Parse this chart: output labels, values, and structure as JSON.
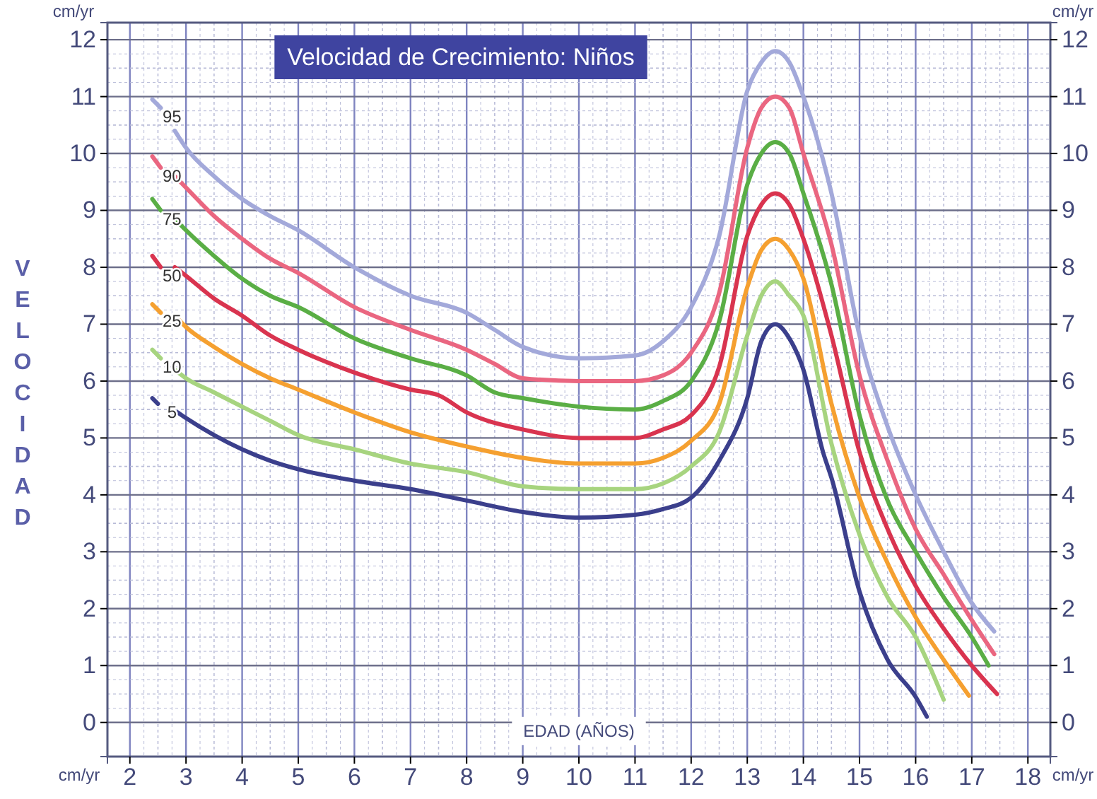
{
  "chart_data": {
    "type": "line",
    "title": "Velocidad de Crecimiento: Niños",
    "xlabel": "EDAD (AÑOS)",
    "ylabel": "VELOCIDAD",
    "xlim": [
      1.6,
      18.4
    ],
    "xticks": [
      2,
      3,
      4,
      5,
      6,
      7,
      8,
      9,
      10,
      11,
      12,
      13,
      14,
      15,
      16,
      17,
      18
    ],
    "ylim": [
      -0.6,
      12.3
    ],
    "yticks": [
      0,
      1,
      2,
      3,
      4,
      5,
      6,
      7,
      8,
      9,
      10,
      11,
      12
    ],
    "y2lim": [
      -0.6,
      12.3
    ],
    "y2ticks": [
      0,
      1,
      2,
      3,
      4,
      5,
      6,
      7,
      8,
      9,
      10,
      11,
      12
    ],
    "grid": true,
    "annotations": [
      "cm/yr",
      "cm/yr",
      "cm/yr",
      "cm/yr"
    ],
    "series": [
      {
        "name": "95",
        "color": "#a3a9da",
        "x": [
          2.4,
          2.55,
          2.65,
          2.8,
          3,
          3.5,
          4,
          4.5,
          5,
          6,
          7,
          8,
          8.5,
          9,
          10,
          11,
          11.5,
          12,
          12.5,
          13,
          13.25,
          13.5,
          13.75,
          14,
          14.5,
          15,
          15.5,
          16,
          16.5,
          17,
          17.4
        ],
        "values": [
          10.95,
          10.8,
          null,
          10.4,
          10.1,
          9.6,
          9.2,
          8.9,
          8.65,
          8.0,
          7.5,
          7.2,
          6.9,
          6.6,
          6.4,
          6.45,
          6.7,
          7.3,
          8.55,
          11.1,
          11.6,
          11.8,
          11.6,
          11.0,
          9.3,
          6.8,
          5.2,
          4.0,
          3.0,
          2.1,
          1.6
        ]
      },
      {
        "name": "90",
        "color": "#ea6680",
        "x": [
          2.4,
          2.55,
          2.65,
          2.8,
          3,
          3.5,
          4,
          4.5,
          5,
          6,
          7,
          8,
          8.5,
          9,
          10,
          11,
          11.5,
          12,
          12.5,
          13,
          13.25,
          13.5,
          13.75,
          14,
          14.5,
          15,
          15.5,
          16,
          16.5,
          17,
          17.4
        ],
        "values": [
          9.95,
          9.75,
          null,
          9.6,
          9.4,
          8.9,
          8.5,
          8.15,
          7.9,
          7.3,
          6.9,
          6.55,
          6.3,
          6.05,
          6.0,
          6.0,
          6.1,
          6.5,
          7.55,
          10.1,
          10.8,
          11.0,
          10.8,
          10.0,
          8.4,
          6.1,
          4.6,
          3.4,
          2.6,
          1.8,
          1.2
        ]
      },
      {
        "name": "75",
        "color": "#5aae45",
        "x": [
          2.4,
          2.55,
          2.65,
          2.8,
          3,
          3.5,
          4,
          4.5,
          5,
          6,
          7,
          8,
          8.5,
          9,
          10,
          11,
          11.5,
          12,
          12.5,
          13,
          13.25,
          13.5,
          13.75,
          14,
          14.5,
          15,
          15.5,
          16,
          16.5,
          17,
          17.3
        ],
        "values": [
          9.2,
          9.0,
          null,
          8.85,
          8.65,
          8.2,
          7.8,
          7.5,
          7.3,
          6.75,
          6.4,
          6.1,
          5.8,
          5.7,
          5.55,
          5.5,
          5.65,
          6.0,
          7.05,
          9.45,
          10.0,
          10.2,
          10.0,
          9.3,
          7.7,
          5.4,
          3.9,
          3.0,
          2.2,
          1.5,
          1.0
        ]
      },
      {
        "name": "50",
        "color": "#d9344f",
        "x": [
          2.4,
          2.55,
          2.65,
          2.8,
          3,
          3.5,
          4,
          4.5,
          5,
          6,
          7,
          7.5,
          8,
          9,
          10,
          11,
          11.5,
          12,
          12.5,
          13,
          13.25,
          13.5,
          13.75,
          14,
          14.5,
          15,
          15.5,
          16,
          16.5,
          17,
          17.45
        ],
        "values": [
          8.2,
          8.0,
          null,
          8.0,
          7.85,
          7.45,
          7.15,
          6.8,
          6.55,
          6.15,
          5.85,
          5.75,
          5.45,
          5.15,
          5.0,
          5.0,
          5.15,
          5.4,
          6.25,
          8.55,
          9.1,
          9.3,
          9.1,
          8.5,
          6.8,
          4.75,
          3.4,
          2.4,
          1.65,
          1.0,
          0.5
        ]
      },
      {
        "name": "25",
        "color": "#f5a030",
        "x": [
          2.4,
          2.55,
          2.65,
          2.8,
          3,
          3.5,
          4,
          4.5,
          5,
          6,
          7,
          8,
          9,
          10,
          11,
          11.5,
          12,
          12.5,
          13,
          13.25,
          13.5,
          13.75,
          14,
          14.5,
          15,
          15.5,
          16,
          16.5,
          16.95
        ],
        "values": [
          7.35,
          7.2,
          null,
          7.15,
          6.95,
          6.6,
          6.3,
          6.05,
          5.85,
          5.45,
          5.1,
          4.85,
          4.65,
          4.55,
          4.55,
          4.65,
          4.95,
          5.6,
          7.65,
          8.3,
          8.5,
          8.3,
          7.8,
          5.6,
          3.95,
          2.8,
          1.85,
          1.1,
          0.47
        ]
      },
      {
        "name": "10",
        "color": "#a7d47f",
        "x": [
          2.4,
          2.55,
          2.65,
          2.8,
          3,
          3.5,
          4,
          4.5,
          5,
          6,
          7,
          8,
          9,
          10,
          11,
          11.5,
          12,
          12.5,
          13,
          13.25,
          13.5,
          13.75,
          14,
          14.5,
          15,
          15.5,
          16,
          16.5
        ],
        "values": [
          6.55,
          6.4,
          null,
          6.2,
          6.05,
          5.8,
          5.55,
          5.3,
          5.05,
          4.8,
          4.55,
          4.4,
          4.15,
          4.1,
          4.1,
          4.2,
          4.5,
          5.1,
          6.8,
          7.5,
          7.75,
          7.5,
          7.15,
          4.9,
          3.3,
          2.2,
          1.5,
          0.4
        ]
      },
      {
        "name": "5",
        "color": "#3b3f8c",
        "x": [
          2.4,
          2.5,
          2.65,
          2.85,
          3,
          3.5,
          4,
          4.5,
          5,
          6,
          7,
          8,
          9,
          10,
          11,
          11.5,
          12,
          12.5,
          13,
          13.25,
          13.5,
          13.75,
          14,
          14.35,
          14.5,
          15,
          15.5,
          16,
          16.2
        ],
        "values": [
          5.7,
          5.6,
          null,
          5.45,
          5.35,
          5.05,
          4.8,
          4.6,
          4.45,
          4.25,
          4.1,
          3.9,
          3.7,
          3.6,
          3.65,
          3.75,
          3.95,
          4.6,
          5.7,
          6.7,
          7.0,
          6.75,
          6.2,
          4.75,
          4.3,
          2.3,
          1.1,
          0.45,
          0.1
        ]
      }
    ]
  }
}
